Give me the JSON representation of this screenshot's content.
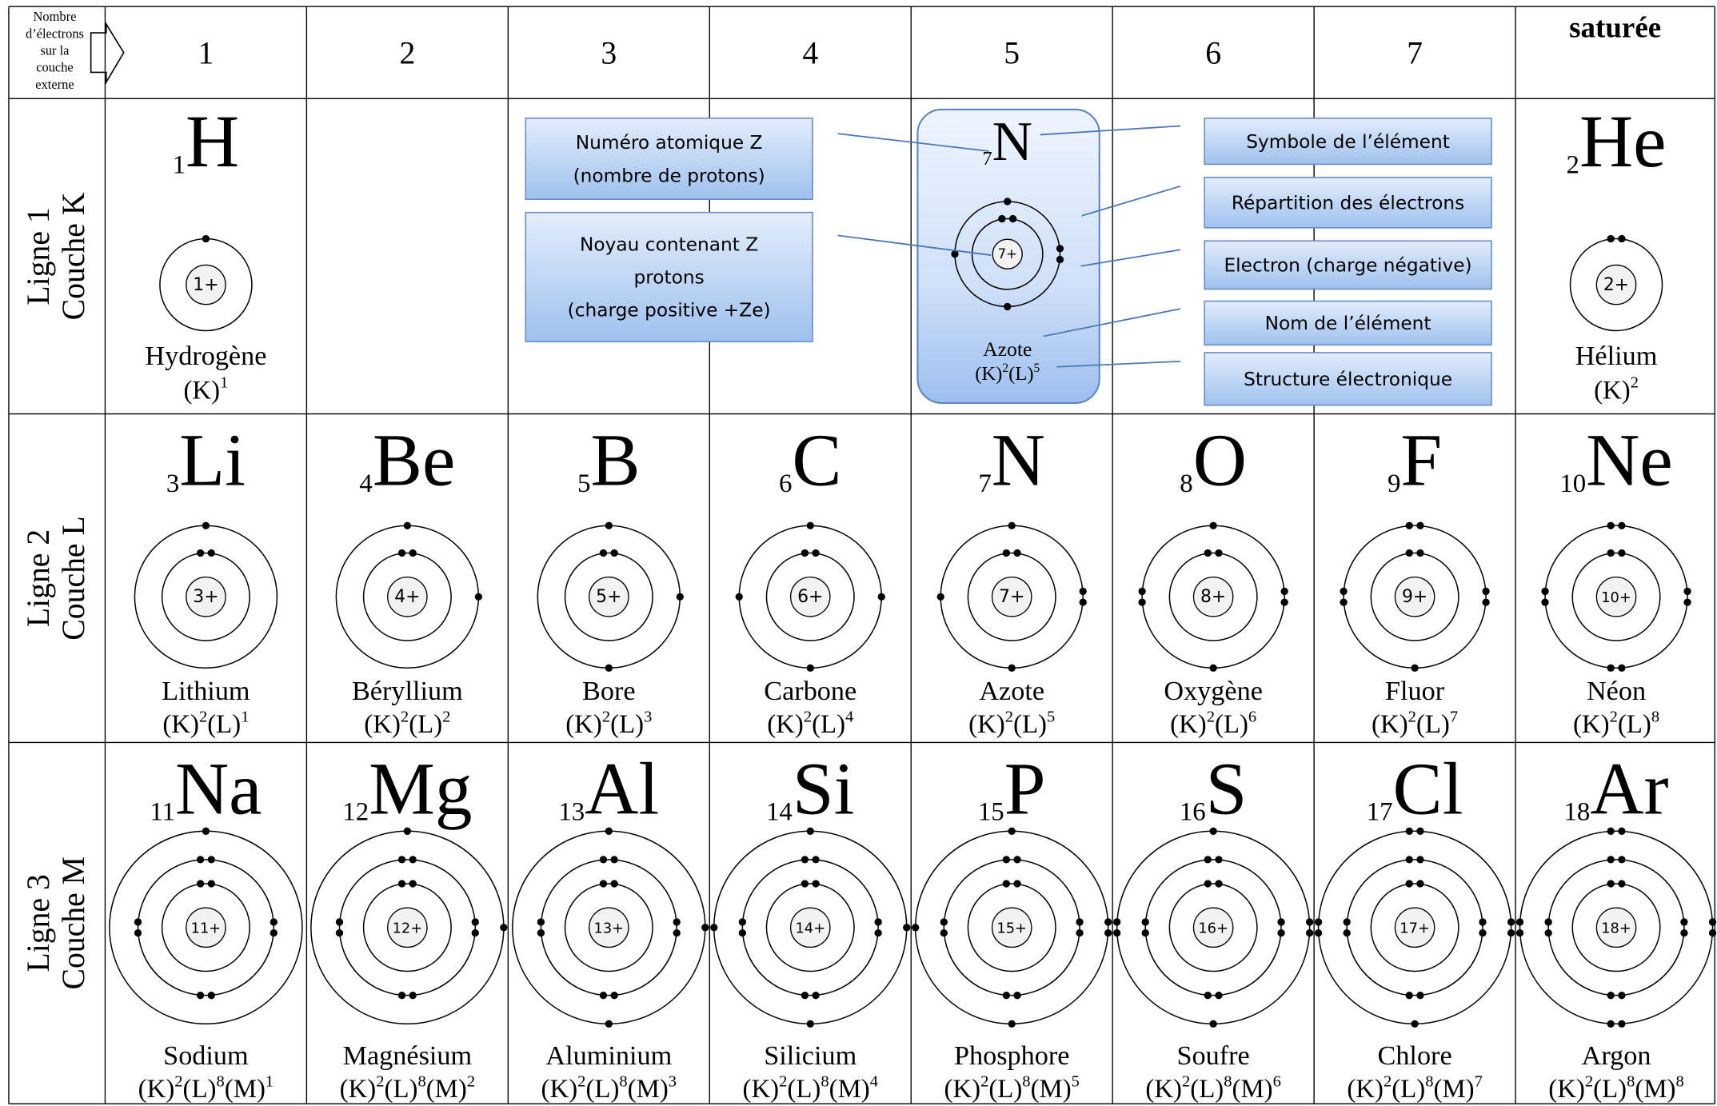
{
  "header": {
    "corner": [
      "Nombre",
      "d’électrons",
      "sur la",
      "couche",
      "externe"
    ],
    "columns": [
      "1",
      "2",
      "3",
      "4",
      "5",
      "6",
      "7",
      "saturée"
    ]
  },
  "rows": [
    {
      "label": [
        "Ligne 1",
        "Couche K"
      ],
      "elements": [
        {
          "z": 1,
          "symbol": "H",
          "nucleus": "1+",
          "name": "Hydrogène",
          "structure": [
            {
              "shell": "(K)",
              "count": 1
            }
          ]
        },
        {
          "z": 2,
          "symbol": "He",
          "nucleus": "2+",
          "name": "Hélium",
          "structure": [
            {
              "shell": "(K)",
              "count": 2
            }
          ]
        }
      ]
    },
    {
      "label": [
        "Ligne 2",
        "Couche L"
      ],
      "elements": [
        {
          "z": 3,
          "symbol": "Li",
          "nucleus": "3+",
          "name": "Lithium",
          "structure": [
            {
              "shell": "(K)",
              "count": 2
            },
            {
              "shell": "(L)",
              "count": 1
            }
          ]
        },
        {
          "z": 4,
          "symbol": "Be",
          "nucleus": "4+",
          "name": "Béryllium",
          "structure": [
            {
              "shell": "(K)",
              "count": 2
            },
            {
              "shell": "(L)",
              "count": 2
            }
          ]
        },
        {
          "z": 5,
          "symbol": "B",
          "nucleus": "5+",
          "name": "Bore",
          "structure": [
            {
              "shell": "(K)",
              "count": 2
            },
            {
              "shell": "(L)",
              "count": 3
            }
          ]
        },
        {
          "z": 6,
          "symbol": "C",
          "nucleus": "6+",
          "name": "Carbone",
          "structure": [
            {
              "shell": "(K)",
              "count": 2
            },
            {
              "shell": "(L)",
              "count": 4
            }
          ]
        },
        {
          "z": 7,
          "symbol": "N",
          "nucleus": "7+",
          "name": "Azote",
          "structure": [
            {
              "shell": "(K)",
              "count": 2
            },
            {
              "shell": "(L)",
              "count": 5
            }
          ]
        },
        {
          "z": 8,
          "symbol": "O",
          "nucleus": "8+",
          "name": "Oxygène",
          "structure": [
            {
              "shell": "(K)",
              "count": 2
            },
            {
              "shell": "(L)",
              "count": 6
            }
          ]
        },
        {
          "z": 9,
          "symbol": "F",
          "nucleus": "9+",
          "name": "Fluor",
          "structure": [
            {
              "shell": "(K)",
              "count": 2
            },
            {
              "shell": "(L)",
              "count": 7
            }
          ]
        },
        {
          "z": 10,
          "symbol": "Ne",
          "nucleus": "10+",
          "name": "Néon",
          "structure": [
            {
              "shell": "(K)",
              "count": 2
            },
            {
              "shell": "(L)",
              "count": 8
            }
          ]
        }
      ]
    },
    {
      "label": [
        "Ligne 3",
        "Couche M"
      ],
      "elements": [
        {
          "z": 11,
          "symbol": "Na",
          "nucleus": "11+",
          "name": "Sodium",
          "structure": [
            {
              "shell": "(K)",
              "count": 2
            },
            {
              "shell": "(L)",
              "count": 8
            },
            {
              "shell": "(M)",
              "count": 1
            }
          ]
        },
        {
          "z": 12,
          "symbol": "Mg",
          "nucleus": "12+",
          "name": "Magnésium",
          "structure": [
            {
              "shell": "(K)",
              "count": 2
            },
            {
              "shell": "(L)",
              "count": 8
            },
            {
              "shell": "(M)",
              "count": 2
            }
          ]
        },
        {
          "z": 13,
          "symbol": "Al",
          "nucleus": "13+",
          "name": "Aluminium",
          "structure": [
            {
              "shell": "(K)",
              "count": 2
            },
            {
              "shell": "(L)",
              "count": 8
            },
            {
              "shell": "(M)",
              "count": 3
            }
          ]
        },
        {
          "z": 14,
          "symbol": "Si",
          "nucleus": "14+",
          "name": "Silicium",
          "structure": [
            {
              "shell": "(K)",
              "count": 2
            },
            {
              "shell": "(L)",
              "count": 8
            },
            {
              "shell": "(M)",
              "count": 4
            }
          ]
        },
        {
          "z": 15,
          "symbol": "P",
          "nucleus": "15+",
          "name": "Phosphore",
          "structure": [
            {
              "shell": "(K)",
              "count": 2
            },
            {
              "shell": "(L)",
              "count": 8
            },
            {
              "shell": "(M)",
              "count": 5
            }
          ]
        },
        {
          "z": 16,
          "symbol": "S",
          "nucleus": "16+",
          "name": "Soufre",
          "structure": [
            {
              "shell": "(K)",
              "count": 2
            },
            {
              "shell": "(L)",
              "count": 8
            },
            {
              "shell": "(M)",
              "count": 6
            }
          ]
        },
        {
          "z": 17,
          "symbol": "Cl",
          "nucleus": "17+",
          "name": "Chlore",
          "structure": [
            {
              "shell": "(K)",
              "count": 2
            },
            {
              "shell": "(L)",
              "count": 8
            },
            {
              "shell": "(M)",
              "count": 7
            }
          ]
        },
        {
          "z": 18,
          "symbol": "Ar",
          "nucleus": "18+",
          "name": "Argon",
          "structure": [
            {
              "shell": "(K)",
              "count": 2
            },
            {
              "shell": "(L)",
              "count": 8
            },
            {
              "shell": "(M)",
              "count": 8
            }
          ]
        }
      ]
    }
  ],
  "legend": {
    "example": {
      "z": 7,
      "symbol": "N",
      "nucleus": "7+",
      "name": "Azote",
      "structure": [
        {
          "shell": "(K)",
          "count": 2
        },
        {
          "shell": "(L)",
          "count": 5
        }
      ]
    },
    "left": [
      {
        "lines": [
          "Numéro atomique Z",
          "(nombre de protons)"
        ]
      },
      {
        "lines": [
          "Noyau contenant Z",
          "protons",
          "(charge positive +Ze)"
        ]
      }
    ],
    "right": [
      {
        "lines": [
          "Symbole de l’élément"
        ]
      },
      {
        "lines": [
          "Répartition des électrons"
        ]
      },
      {
        "lines": [
          "Electron (charge négative)"
        ]
      },
      {
        "lines": [
          "Nom de l’élément"
        ]
      },
      {
        "lines": [
          "Structure électronique"
        ]
      }
    ]
  }
}
